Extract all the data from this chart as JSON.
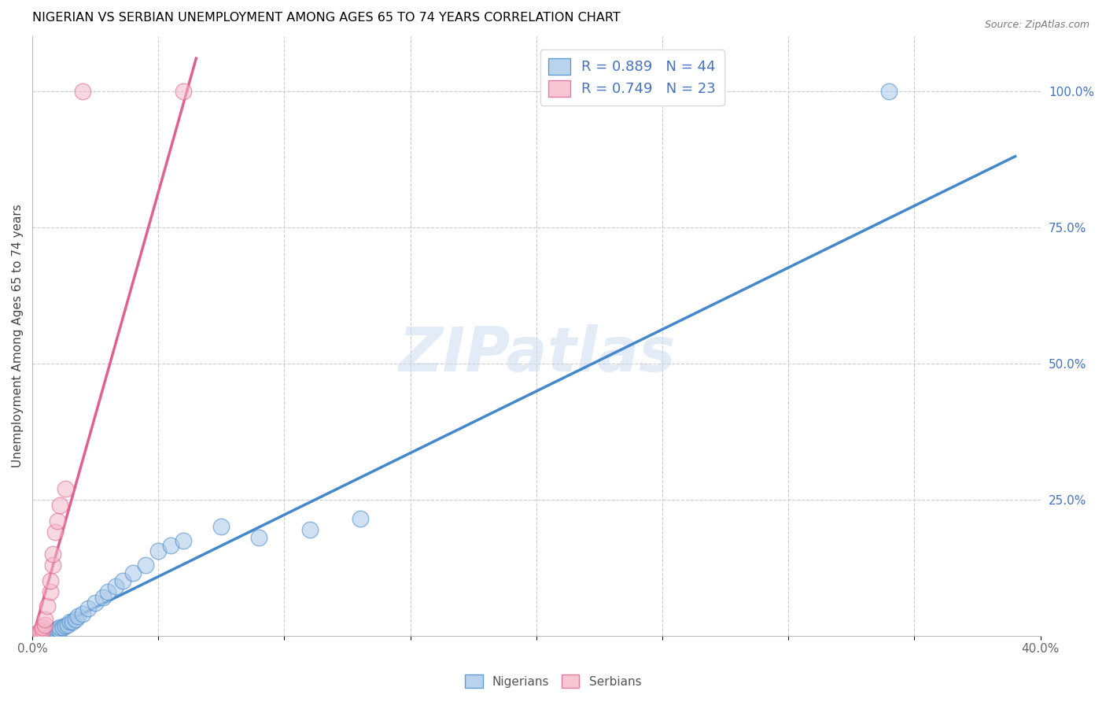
{
  "title": "NIGERIAN VS SERBIAN UNEMPLOYMENT AMONG AGES 65 TO 74 YEARS CORRELATION CHART",
  "source": "Source: ZipAtlas.com",
  "ylabel": "Unemployment Among Ages 65 to 74 years",
  "xlim": [
    0.0,
    0.4
  ],
  "ylim": [
    0.0,
    1.1
  ],
  "yticks_right": [
    0.25,
    0.5,
    0.75,
    1.0
  ],
  "ytick_right_labels": [
    "25.0%",
    "50.0%",
    "75.0%",
    "100.0%"
  ],
  "watermark": "ZIPatlas",
  "legend_blue_label": "R = 0.889   N = 44",
  "legend_pink_label": "R = 0.749   N = 23",
  "legend_bottom_blue": "Nigerians",
  "legend_bottom_pink": "Serbians",
  "blue_scatter_color": "#a8c8e8",
  "pink_scatter_color": "#f4b8c8",
  "blue_line_color": "#4488cc",
  "pink_line_color": "#e06090",
  "R_text_color": "#4472c4",
  "title_color": "#000000",
  "background_color": "#ffffff",
  "grid_color": "#cccccc",
  "nigerians_x": [
    0.001,
    0.002,
    0.003,
    0.003,
    0.004,
    0.004,
    0.005,
    0.005,
    0.006,
    0.006,
    0.007,
    0.007,
    0.008,
    0.008,
    0.009,
    0.009,
    0.01,
    0.01,
    0.011,
    0.011,
    0.012,
    0.013,
    0.014,
    0.015,
    0.016,
    0.017,
    0.018,
    0.02,
    0.022,
    0.025,
    0.028,
    0.03,
    0.033,
    0.036,
    0.04,
    0.045,
    0.05,
    0.055,
    0.06,
    0.075,
    0.09,
    0.11,
    0.13,
    0.34
  ],
  "nigerians_y": [
    0.0,
    0.0,
    0.0,
    0.001,
    0.0,
    0.002,
    0.0,
    0.003,
    0.0,
    0.004,
    0.0,
    0.005,
    0.005,
    0.008,
    0.005,
    0.01,
    0.008,
    0.012,
    0.01,
    0.015,
    0.015,
    0.018,
    0.02,
    0.025,
    0.025,
    0.03,
    0.035,
    0.04,
    0.05,
    0.06,
    0.07,
    0.08,
    0.09,
    0.1,
    0.115,
    0.13,
    0.155,
    0.165,
    0.175,
    0.2,
    0.18,
    0.195,
    0.215,
    1.0
  ],
  "serbians_x": [
    0.0,
    0.0,
    0.001,
    0.001,
    0.002,
    0.002,
    0.003,
    0.003,
    0.004,
    0.004,
    0.005,
    0.005,
    0.006,
    0.007,
    0.007,
    0.008,
    0.008,
    0.009,
    0.01,
    0.011,
    0.013,
    0.02,
    0.06
  ],
  "serbians_y": [
    0.0,
    0.001,
    0.0,
    0.002,
    0.003,
    0.005,
    0.005,
    0.008,
    0.01,
    0.015,
    0.02,
    0.03,
    0.055,
    0.08,
    0.1,
    0.13,
    0.15,
    0.19,
    0.21,
    0.24,
    0.27,
    1.0,
    1.0
  ],
  "blue_trendline_x": [
    0.0,
    0.39
  ],
  "blue_trendline_y": [
    -0.005,
    0.88
  ],
  "pink_trendline_x": [
    0.0,
    0.065
  ],
  "pink_trendline_y": [
    -0.005,
    1.06
  ]
}
